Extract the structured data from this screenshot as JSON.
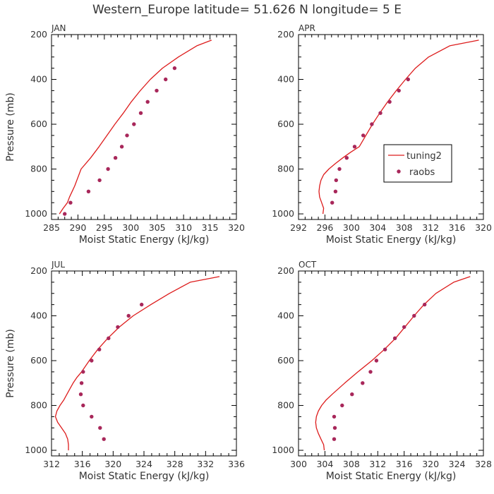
{
  "figure": {
    "title": "Western_Europe  latitude= 51.626 N longitude= 5 E"
  },
  "legend": {
    "entries": [
      "tuning2",
      "raobs"
    ],
    "placement": "inside APR panel, right-center"
  },
  "colors": {
    "model_line": "#dd1c1c",
    "raobs_marker": "#a8275a",
    "axis": "#000000",
    "text": "#333333"
  },
  "chart_data": [
    {
      "type": "line",
      "panel_label": "JAN",
      "xlabel": "Moist Static Energy (kJ/kg)",
      "ylabel": "Pressure (mb)",
      "xlim": [
        285,
        320
      ],
      "ylim": [
        1025,
        200
      ],
      "xticks": [
        285,
        290,
        295,
        300,
        305,
        310,
        315,
        320
      ],
      "yticks": [
        200,
        400,
        600,
        800,
        1000
      ],
      "series": [
        {
          "name": "tuning2",
          "kind": "line",
          "points": [
            [
              286.5,
              1000
            ],
            [
              287.2,
              975
            ],
            [
              288.0,
              950
            ],
            [
              288.4,
              925
            ],
            [
              288.9,
              900
            ],
            [
              289.4,
              875
            ],
            [
              289.8,
              850
            ],
            [
              290.2,
              825
            ],
            [
              290.6,
              800
            ],
            [
              291.5,
              775
            ],
            [
              292.4,
              750
            ],
            [
              294.0,
              700
            ],
            [
              295.5,
              650
            ],
            [
              297.0,
              600
            ],
            [
              298.6,
              550
            ],
            [
              300.1,
              500
            ],
            [
              301.8,
              450
            ],
            [
              303.7,
              400
            ],
            [
              306.0,
              350
            ],
            [
              309.0,
              300
            ],
            [
              312.5,
              250
            ],
            [
              315.3,
              225
            ]
          ]
        },
        {
          "name": "raobs",
          "kind": "markers",
          "points": [
            [
              287.5,
              1000
            ],
            [
              288.6,
              950
            ],
            [
              292.0,
              900
            ],
            [
              294.1,
              850
            ],
            [
              295.7,
              800
            ],
            [
              297.1,
              750
            ],
            [
              298.3,
              700
            ],
            [
              299.3,
              650
            ],
            [
              300.6,
              600
            ],
            [
              301.9,
              550
            ],
            [
              303.2,
              500
            ],
            [
              304.9,
              450
            ],
            [
              306.6,
              400
            ],
            [
              308.3,
              350
            ]
          ]
        }
      ]
    },
    {
      "type": "line",
      "panel_label": "APR",
      "xlabel": "Moist Static Energy (kJ/kg)",
      "ylabel": "",
      "xlim": [
        292,
        320
      ],
      "ylim": [
        1025,
        200
      ],
      "xticks": [
        292,
        296,
        300,
        304,
        308,
        312,
        316,
        320
      ],
      "yticks": [
        200,
        400,
        600,
        800,
        1000
      ],
      "series": [
        {
          "name": "tuning2",
          "kind": "line",
          "points": [
            [
              295.7,
              1000
            ],
            [
              295.8,
              975
            ],
            [
              295.5,
              950
            ],
            [
              295.2,
              925
            ],
            [
              295.1,
              900
            ],
            [
              295.2,
              875
            ],
            [
              295.4,
              850
            ],
            [
              295.8,
              825
            ],
            [
              296.6,
              800
            ],
            [
              297.6,
              775
            ],
            [
              298.7,
              750
            ],
            [
              299.9,
              725
            ],
            [
              301.2,
              700
            ],
            [
              302.2,
              650
            ],
            [
              303.2,
              600
            ],
            [
              304.3,
              550
            ],
            [
              305.5,
              500
            ],
            [
              306.8,
              450
            ],
            [
              308.2,
              400
            ],
            [
              309.7,
              350
            ],
            [
              311.7,
              300
            ],
            [
              314.9,
              250
            ],
            [
              319.3,
              225
            ]
          ]
        },
        {
          "name": "raobs",
          "kind": "markers",
          "points": [
            [
              297.1,
              950
            ],
            [
              297.6,
              900
            ],
            [
              297.7,
              850
            ],
            [
              298.2,
              800
            ],
            [
              299.3,
              750
            ],
            [
              300.5,
              700
            ],
            [
              301.8,
              650
            ],
            [
              303.1,
              600
            ],
            [
              304.4,
              550
            ],
            [
              305.8,
              500
            ],
            [
              307.2,
              450
            ],
            [
              308.6,
              400
            ]
          ]
        }
      ]
    },
    {
      "type": "line",
      "panel_label": "JUL",
      "xlabel": "Moist Static Energy (kJ/kg)",
      "ylabel": "Pressure (mb)",
      "xlim": [
        312,
        336
      ],
      "ylim": [
        1025,
        200
      ],
      "xticks": [
        312,
        316,
        320,
        324,
        328,
        332,
        336
      ],
      "yticks": [
        200,
        400,
        600,
        800,
        1000
      ],
      "series": [
        {
          "name": "tuning2",
          "kind": "line",
          "points": [
            [
              314.2,
              1000
            ],
            [
              314.2,
              975
            ],
            [
              314.1,
              950
            ],
            [
              313.8,
              925
            ],
            [
              313.3,
              900
            ],
            [
              312.8,
              875
            ],
            [
              312.5,
              850
            ],
            [
              312.7,
              825
            ],
            [
              313.1,
              800
            ],
            [
              313.6,
              775
            ],
            [
              314.0,
              750
            ],
            [
              314.4,
              725
            ],
            [
              314.8,
              700
            ],
            [
              315.3,
              675
            ],
            [
              315.9,
              650
            ],
            [
              316.9,
              600
            ],
            [
              318.0,
              550
            ],
            [
              319.3,
              500
            ],
            [
              320.8,
              450
            ],
            [
              322.6,
              400
            ],
            [
              324.9,
              350
            ],
            [
              327.3,
              300
            ],
            [
              330.0,
              250
            ],
            [
              333.8,
              225
            ]
          ]
        },
        {
          "name": "raobs",
          "kind": "markers",
          "points": [
            [
              318.8,
              950
            ],
            [
              318.3,
              900
            ],
            [
              317.2,
              850
            ],
            [
              316.1,
              800
            ],
            [
              315.8,
              750
            ],
            [
              315.9,
              700
            ],
            [
              316.1,
              650
            ],
            [
              317.2,
              600
            ],
            [
              318.2,
              550
            ],
            [
              319.4,
              500
            ],
            [
              320.6,
              450
            ],
            [
              322.0,
              400
            ],
            [
              323.7,
              350
            ]
          ]
        }
      ]
    },
    {
      "type": "line",
      "panel_label": "OCT",
      "xlabel": "Moist Static Energy (kJ/kg)",
      "ylabel": "",
      "xlim": [
        300,
        328
      ],
      "ylim": [
        1025,
        200
      ],
      "xticks": [
        300,
        304,
        308,
        312,
        316,
        320,
        324,
        328
      ],
      "yticks": [
        200,
        400,
        600,
        800,
        1000
      ],
      "series": [
        {
          "name": "tuning2",
          "kind": "line",
          "points": [
            [
              303.9,
              1000
            ],
            [
              303.8,
              975
            ],
            [
              303.4,
              950
            ],
            [
              303.0,
              925
            ],
            [
              302.7,
              900
            ],
            [
              302.6,
              875
            ],
            [
              302.7,
              850
            ],
            [
              303.0,
              825
            ],
            [
              303.5,
              800
            ],
            [
              304.2,
              775
            ],
            [
              305.1,
              750
            ],
            [
              307.0,
              700
            ],
            [
              309.0,
              650
            ],
            [
              311.1,
              600
            ],
            [
              313.0,
              550
            ],
            [
              314.7,
              500
            ],
            [
              316.1,
              450
            ],
            [
              317.5,
              400
            ],
            [
              319.0,
              350
            ],
            [
              320.8,
              300
            ],
            [
              323.5,
              250
            ],
            [
              326.0,
              225
            ]
          ]
        },
        {
          "name": "raobs",
          "kind": "markers",
          "points": [
            [
              305.4,
              950
            ],
            [
              305.5,
              900
            ],
            [
              305.4,
              850
            ],
            [
              306.6,
              800
            ],
            [
              308.1,
              750
            ],
            [
              309.7,
              700
            ],
            [
              310.9,
              650
            ],
            [
              311.8,
              600
            ],
            [
              313.1,
              550
            ],
            [
              314.6,
              500
            ],
            [
              316.0,
              450
            ],
            [
              317.5,
              400
            ],
            [
              319.1,
              350
            ]
          ]
        }
      ]
    }
  ]
}
